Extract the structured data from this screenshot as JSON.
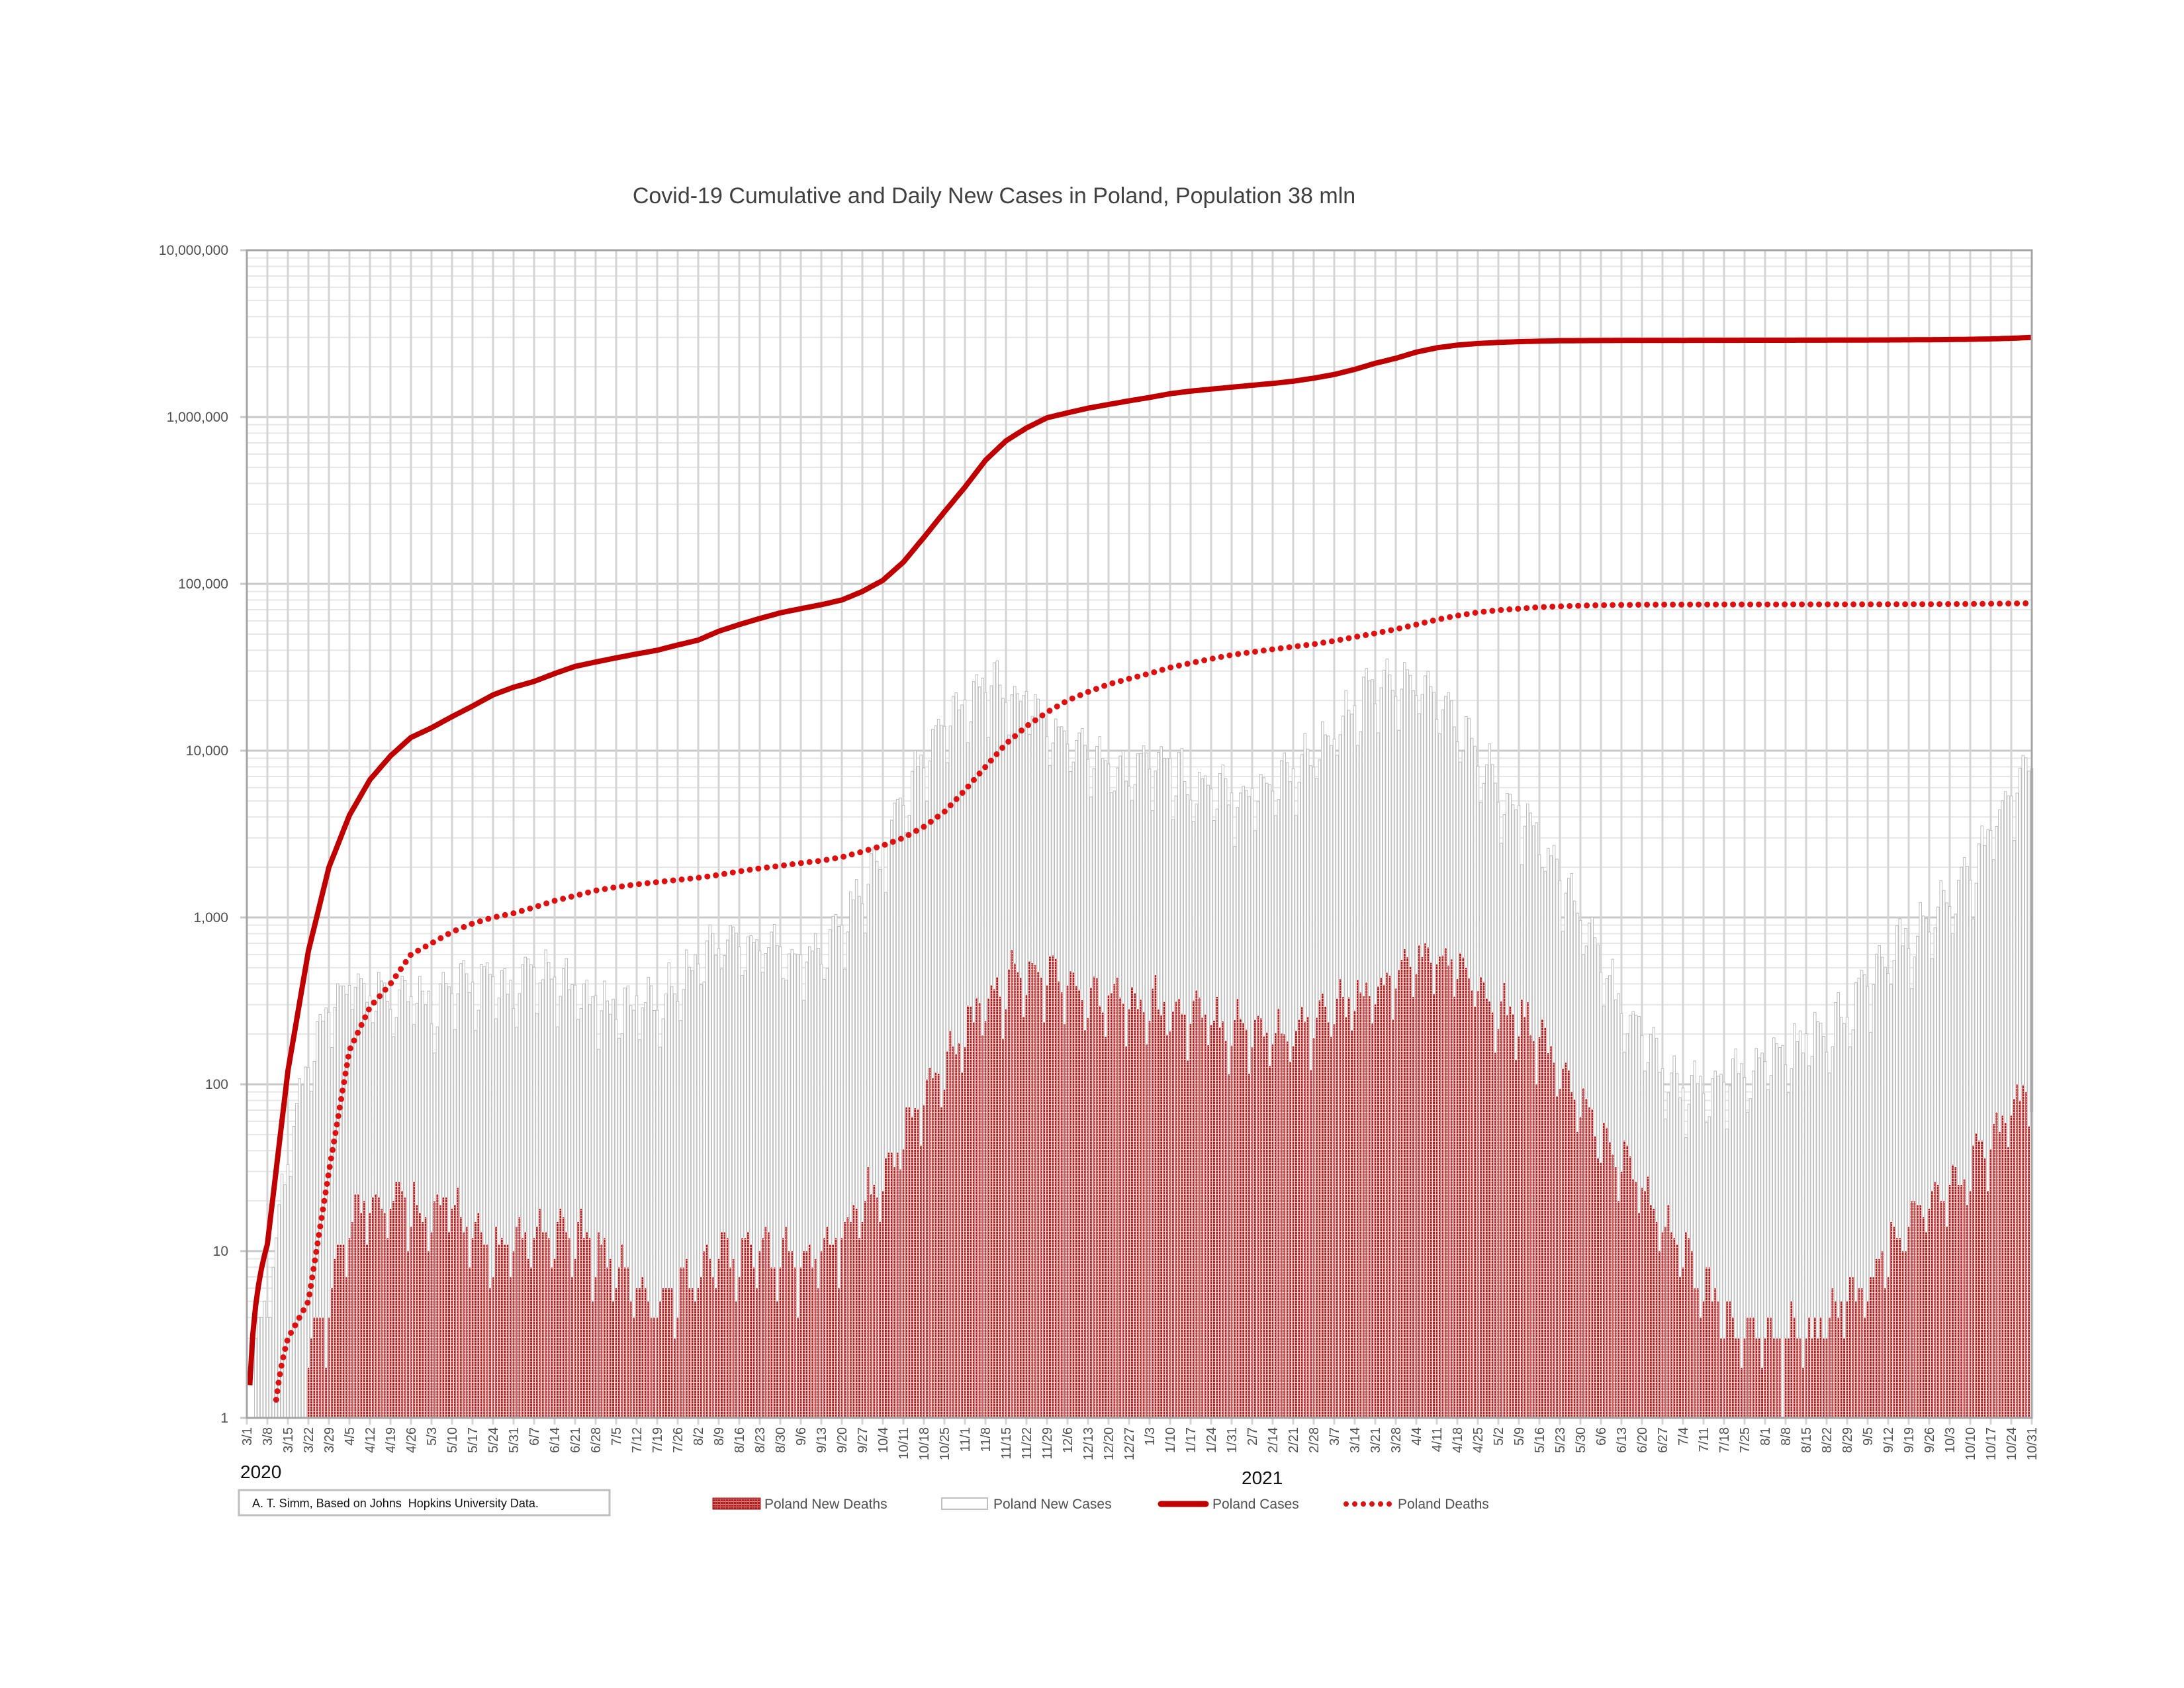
{
  "chart_data": {
    "type": "bar+line",
    "title": "Covid-19 Cumulative and Daily New Cases in Poland, Population 38 mln",
    "yscale": "log",
    "ylim": [
      1,
      10000000
    ],
    "y_tick_labels": [
      "10,000,000",
      "1,000,000",
      "100,000",
      "10,000",
      "1,000",
      "100",
      "10",
      "1"
    ],
    "y_tick_values": [
      10000000,
      1000000,
      100000,
      10000,
      1000,
      100,
      10,
      1
    ],
    "grid": true,
    "x_start_date": "2020-03-01",
    "x_end_date": "2021-10-31",
    "x_tick_labels": [
      "3/1",
      "3/8",
      "3/15",
      "3/22",
      "3/29",
      "4/5",
      "4/12",
      "4/19",
      "4/26",
      "5/3",
      "5/10",
      "5/17",
      "5/24",
      "5/31",
      "6/7",
      "6/14",
      "6/21",
      "6/28",
      "7/5",
      "7/12",
      "7/19",
      "7/26",
      "8/2",
      "8/9",
      "8/16",
      "8/23",
      "8/30",
      "9/6",
      "9/13",
      "9/20",
      "9/27",
      "10/4",
      "10/11",
      "10/18",
      "10/25",
      "11/1",
      "11/8",
      "11/15",
      "11/22",
      "11/29",
      "12/6",
      "12/13",
      "12/20",
      "12/27",
      "1/3",
      "1/10",
      "1/17",
      "1/24",
      "1/31",
      "2/7",
      "2/14",
      "2/21",
      "2/28",
      "3/7",
      "3/14",
      "3/21",
      "3/28",
      "4/4",
      "4/11",
      "4/18",
      "4/25",
      "5/2",
      "5/9",
      "5/16",
      "5/23",
      "5/30",
      "6/6",
      "6/13",
      "6/20",
      "6/27",
      "7/4",
      "7/11",
      "7/18",
      "7/25",
      "8/1",
      "8/8",
      "8/15",
      "8/22",
      "8/29",
      "9/5",
      "9/12",
      "9/19",
      "9/26",
      "10/3",
      "10/10",
      "10/17",
      "10/24",
      "10/31"
    ],
    "year_labels": [
      "2020",
      "2021"
    ],
    "legend_position": "bottom",
    "series": [
      {
        "name": "Poland New Deaths",
        "kind": "bar",
        "color": "#B01818",
        "values": [
          0,
          0,
          0.5,
          2,
          5,
          15,
          20,
          20,
          20,
          15,
          20,
          12,
          10,
          10,
          12,
          12,
          12,
          10,
          8,
          6,
          5,
          6,
          7,
          10,
          10,
          10,
          10,
          8,
          10,
          12,
          20,
          25,
          50,
          80,
          130,
          220,
          300,
          400,
          450,
          450,
          400,
          350,
          350,
          300,
          300,
          280,
          250,
          250,
          220,
          220,
          200,
          200,
          250,
          280,
          300,
          350,
          450,
          550,
          550,
          500,
          400,
          300,
          250,
          200,
          120,
          70,
          50,
          35,
          25,
          15,
          10,
          6,
          4,
          3,
          3,
          3,
          3,
          4,
          5,
          6,
          10,
          15,
          20,
          25,
          30,
          45,
          70,
          90
        ]
      },
      {
        "name": "Poland New Cases",
        "kind": "bar",
        "color": "#BBBBBB",
        "values": [
          0,
          5,
          40,
          130,
          250,
          400,
          350,
          350,
          350,
          300,
          350,
          400,
          400,
          350,
          450,
          400,
          350,
          300,
          280,
          300,
          300,
          400,
          550,
          700,
          700,
          700,
          650,
          550,
          600,
          900,
          1400,
          2500,
          5000,
          8500,
          14000,
          20000,
          25000,
          22000,
          20000,
          14000,
          11000,
          10000,
          9000,
          7000,
          9000,
          8000,
          6000,
          5500,
          5500,
          5500,
          6500,
          7500,
          9500,
          13000,
          17000,
          23000,
          25000,
          25000,
          20000,
          14000,
          9000,
          6000,
          4500,
          3000,
          1800,
          1000,
          500,
          300,
          200,
          130,
          90,
          90,
          100,
          110,
          130,
          150,
          180,
          200,
          250,
          400,
          600,
          700,
          900,
          1300,
          1900,
          3000,
          5500,
          8000
        ]
      },
      {
        "name": "Poland Cases",
        "kind": "line",
        "color": "#C00000",
        "values": [
          0,
          11,
          120,
          630,
          2000,
          4100,
          6700,
          9300,
          12000,
          13700,
          16000,
          18500,
          21600,
          24000,
          26000,
          29000,
          32000,
          34000,
          36000,
          38000,
          40000,
          43000,
          46000,
          52000,
          57000,
          62000,
          67000,
          71000,
          75000,
          80000,
          90000,
          105000,
          135000,
          190000,
          270000,
          380000,
          550000,
          720000,
          860000,
          990000,
          1060000,
          1130000,
          1190000,
          1250000,
          1310000,
          1380000,
          1430000,
          1470000,
          1510000,
          1550000,
          1590000,
          1640000,
          1710000,
          1800000,
          1930000,
          2100000,
          2250000,
          2450000,
          2600000,
          2700000,
          2760000,
          2800000,
          2830000,
          2850000,
          2865000,
          2870000,
          2875000,
          2878000,
          2880000,
          2881000,
          2882000,
          2883000,
          2884000,
          2885000,
          2886000,
          2887000,
          2888000,
          2890000,
          2892000,
          2895000,
          2898000,
          2902000,
          2907000,
          2914000,
          2925000,
          2940000,
          2965000,
          3000000
        ]
      },
      {
        "name": "Poland Deaths",
        "kind": "line-dotted",
        "color": "#E01010",
        "values": [
          0,
          0,
          3,
          5,
          30,
          160,
          290,
          400,
          600,
          700,
          820,
          920,
          1000,
          1060,
          1150,
          1260,
          1350,
          1450,
          1520,
          1580,
          1630,
          1680,
          1730,
          1800,
          1890,
          1970,
          2040,
          2120,
          2190,
          2300,
          2480,
          2700,
          3000,
          3500,
          4300,
          5800,
          8000,
          11000,
          14000,
          17000,
          20000,
          22500,
          25000,
          27000,
          29000,
          31500,
          33500,
          35500,
          37500,
          39000,
          40500,
          42000,
          43500,
          45500,
          48000,
          50500,
          53500,
          57000,
          61000,
          64500,
          67500,
          69500,
          71000,
          72500,
          73300,
          74000,
          74500,
          74800,
          75000,
          75100,
          75150,
          75200,
          75230,
          75260,
          75280,
          75300,
          75320,
          75340,
          75360,
          75400,
          75450,
          75500,
          75560,
          75650,
          75800,
          76000,
          76200,
          76500
        ]
      }
    ]
  },
  "legend": {
    "deaths_bar": "Poland New Deaths",
    "cases_bar": "Poland New Cases",
    "cases_line": "Poland Cases",
    "deaths_line": "Poland Deaths"
  },
  "credit": "A. T. Simm, Based on Johns  Hopkins University Data."
}
